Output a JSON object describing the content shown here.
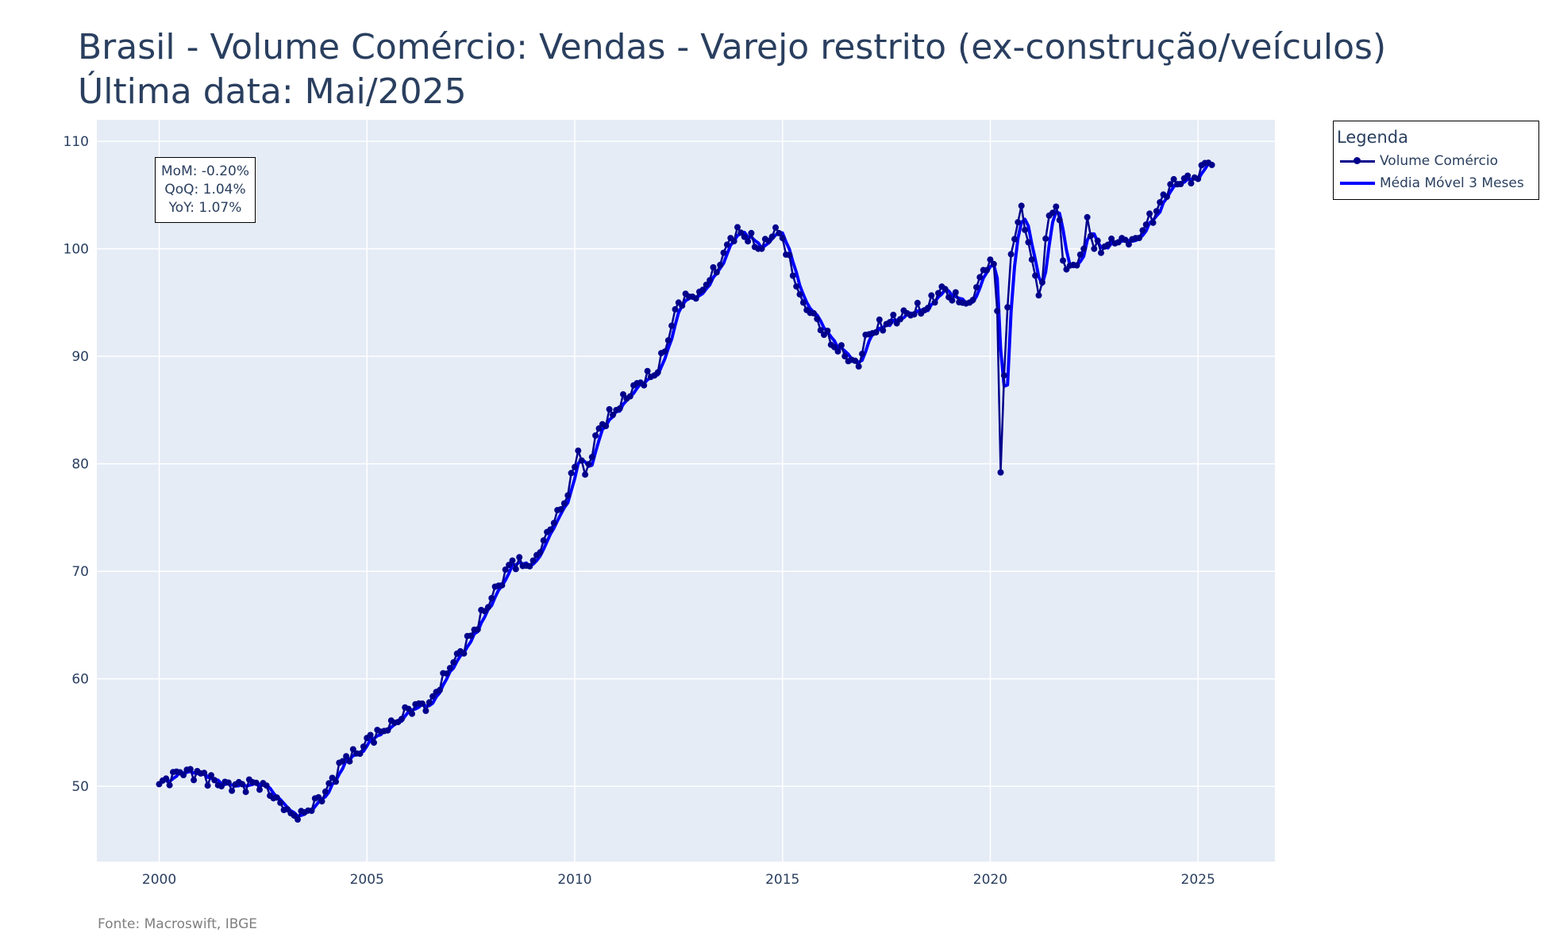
{
  "title": {
    "line1": "Brasil - Volume Comércio: Vendas - Varejo restrito (ex-construção/veículos)",
    "line2": "Última data: Mai/2025"
  },
  "annotation": {
    "mom": "MoM: -0.20%",
    "qoq": "QoQ: 1.04%",
    "yoy": "YoY: 1.07%"
  },
  "legend": {
    "title": "Legenda",
    "position": "right"
  },
  "source": "Fonte: Macroswift, IBGE",
  "colors": {
    "plot_bg": "#e5ecf6",
    "grid": "#ffffff",
    "series_volume": "#00008b",
    "series_ma3": "#0000ff",
    "text": "#2a3f5f"
  },
  "chart_data": {
    "type": "line",
    "title": "Brasil - Volume Comércio: Vendas - Varejo restrito (ex-construção/veículos)",
    "x_start": "2000-01",
    "x_end": "2025-05",
    "frequency": "monthly",
    "xlim": [
      1998.5,
      2026.85
    ],
    "ylim": [
      43,
      112
    ],
    "xticks": [
      2000,
      2005,
      2010,
      2015,
      2020,
      2025
    ],
    "yticks": [
      50,
      60,
      70,
      80,
      90,
      100,
      110
    ],
    "grid": true,
    "legend_placement": "right",
    "series": [
      {
        "name": "Volume Comércio",
        "mode": "lines+markers",
        "anchors": [
          [
            2000.0,
            50.2
          ],
          [
            2000.5,
            51.3
          ],
          [
            2001.0,
            51.2
          ],
          [
            2001.5,
            50.0
          ],
          [
            2002.0,
            50.2
          ],
          [
            2002.5,
            50.3
          ],
          [
            2003.0,
            47.8
          ],
          [
            2003.33,
            46.9
          ],
          [
            2003.6,
            47.8
          ],
          [
            2004.0,
            49.5
          ],
          [
            2004.5,
            52.8
          ],
          [
            2004.83,
            53.0
          ],
          [
            2005.0,
            54.5
          ],
          [
            2005.5,
            55.2
          ],
          [
            2006.0,
            57.2
          ],
          [
            2006.5,
            57.8
          ],
          [
            2007.0,
            61.0
          ],
          [
            2007.5,
            64.0
          ],
          [
            2008.0,
            67.5
          ],
          [
            2008.5,
            71.0
          ],
          [
            2008.75,
            70.5
          ],
          [
            2009.0,
            71.0
          ],
          [
            2009.5,
            74.5
          ],
          [
            2009.83,
            77.0
          ],
          [
            2010.1,
            81.5
          ],
          [
            2010.25,
            79.0
          ],
          [
            2010.6,
            83.5
          ],
          [
            2011.0,
            85.0
          ],
          [
            2011.5,
            87.5
          ],
          [
            2012.0,
            88.5
          ],
          [
            2012.5,
            95.0
          ],
          [
            2013.0,
            96.0
          ],
          [
            2013.5,
            98.5
          ],
          [
            2013.75,
            101.0
          ],
          [
            2014.0,
            101.5
          ],
          [
            2014.5,
            100.0
          ],
          [
            2014.83,
            102.0
          ],
          [
            2015.0,
            101.0
          ],
          [
            2015.25,
            97.5
          ],
          [
            2015.5,
            95.0
          ],
          [
            2015.75,
            94.0
          ],
          [
            2016.0,
            92.0
          ],
          [
            2016.5,
            90.0
          ],
          [
            2016.83,
            89.0
          ],
          [
            2017.0,
            92.0
          ],
          [
            2017.5,
            93.0
          ],
          [
            2018.0,
            94.0
          ],
          [
            2018.5,
            94.5
          ],
          [
            2018.83,
            96.5
          ],
          [
            2019.0,
            95.5
          ],
          [
            2019.5,
            95.0
          ],
          [
            2019.83,
            98.0
          ],
          [
            2020.0,
            99.0
          ],
          [
            2020.1,
            98.5
          ],
          [
            2020.17,
            94.0
          ],
          [
            2020.25,
            79.2
          ],
          [
            2020.33,
            88.0
          ],
          [
            2020.5,
            99.5
          ],
          [
            2020.75,
            104.0
          ],
          [
            2021.0,
            99.0
          ],
          [
            2021.2,
            95.0
          ],
          [
            2021.4,
            103.0
          ],
          [
            2021.6,
            104.0
          ],
          [
            2021.8,
            98.0
          ],
          [
            2022.0,
            98.5
          ],
          [
            2022.25,
            100.0
          ],
          [
            2022.33,
            103.0
          ],
          [
            2022.5,
            100.0
          ],
          [
            2023.0,
            100.5
          ],
          [
            2023.5,
            101.0
          ],
          [
            2024.0,
            103.5
          ],
          [
            2024.33,
            106.0
          ],
          [
            2024.5,
            106.0
          ],
          [
            2024.75,
            106.8
          ],
          [
            2025.0,
            106.5
          ],
          [
            2025.15,
            108.0
          ],
          [
            2025.33,
            107.8
          ]
        ]
      },
      {
        "name": "Média Móvel 3 Meses",
        "mode": "lines",
        "window": 3
      }
    ]
  }
}
